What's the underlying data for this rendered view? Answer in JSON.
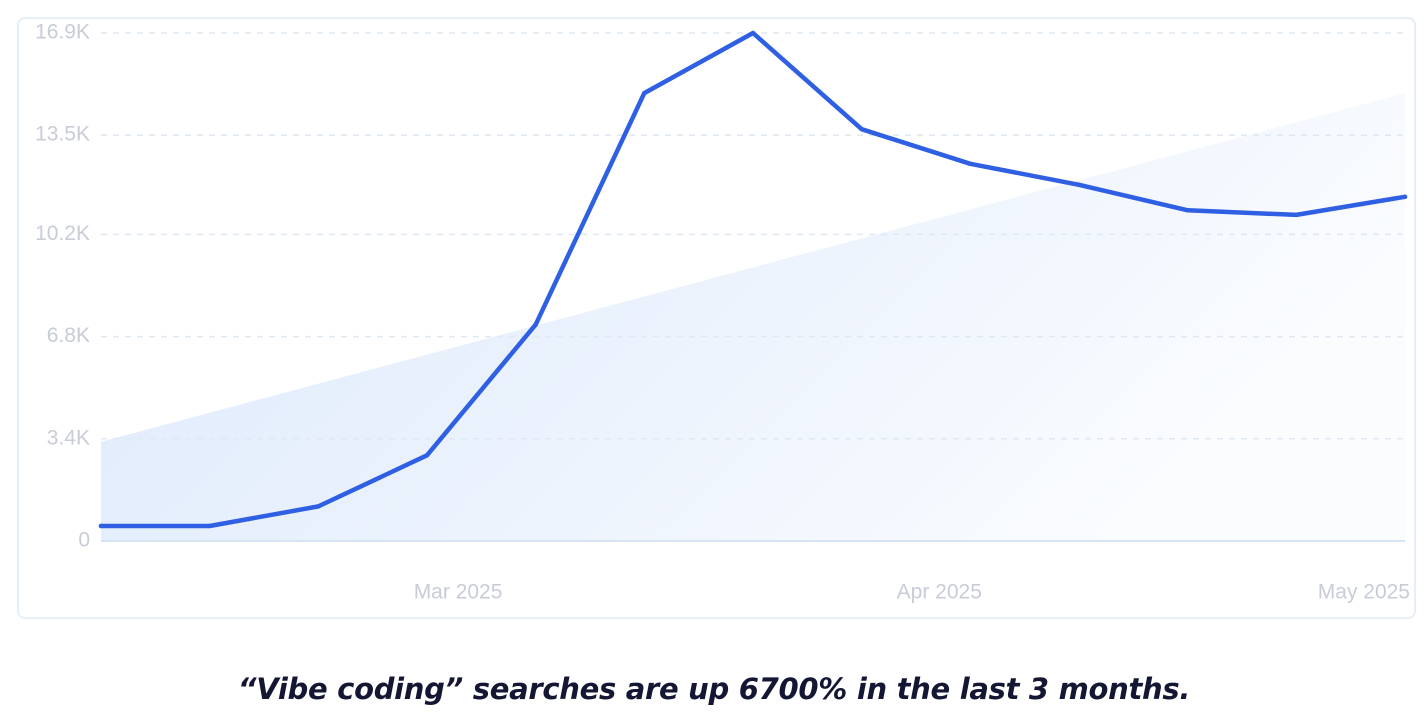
{
  "chart_data": {
    "type": "line",
    "x": [
      "2025-02-06",
      "2025-02-13",
      "2025-02-20",
      "2025-02-27",
      "2025-03-06",
      "2025-03-13",
      "2025-03-20",
      "2025-03-27",
      "2025-04-03",
      "2025-04-10",
      "2025-04-17",
      "2025-04-24",
      "2025-05-01"
    ],
    "series": [
      {
        "values": [
          500,
          500,
          1150,
          2850,
          7200,
          14900,
          16900,
          13700,
          12550,
          11850,
          11000,
          10850,
          11450
        ]
      }
    ],
    "trend_area": {
      "start": 3300,
      "end": 14900
    },
    "ylim": [
      0,
      16900
    ],
    "y_ticks": [
      "0",
      "3.4K",
      "6.8K",
      "10.2K",
      "13.5K",
      "16.9K"
    ],
    "x_tick_labels": [
      "Mar 2025",
      "Apr 2025",
      "May 2025"
    ],
    "grid": true,
    "colors": {
      "line": "#2f5fe3",
      "grid": "#dfe8f3",
      "trend_fill": "#dbe8fb",
      "tick_text": "#c7ccd6"
    }
  },
  "caption": "“Vibe coding” searches are up 6700% in the last 3 months."
}
